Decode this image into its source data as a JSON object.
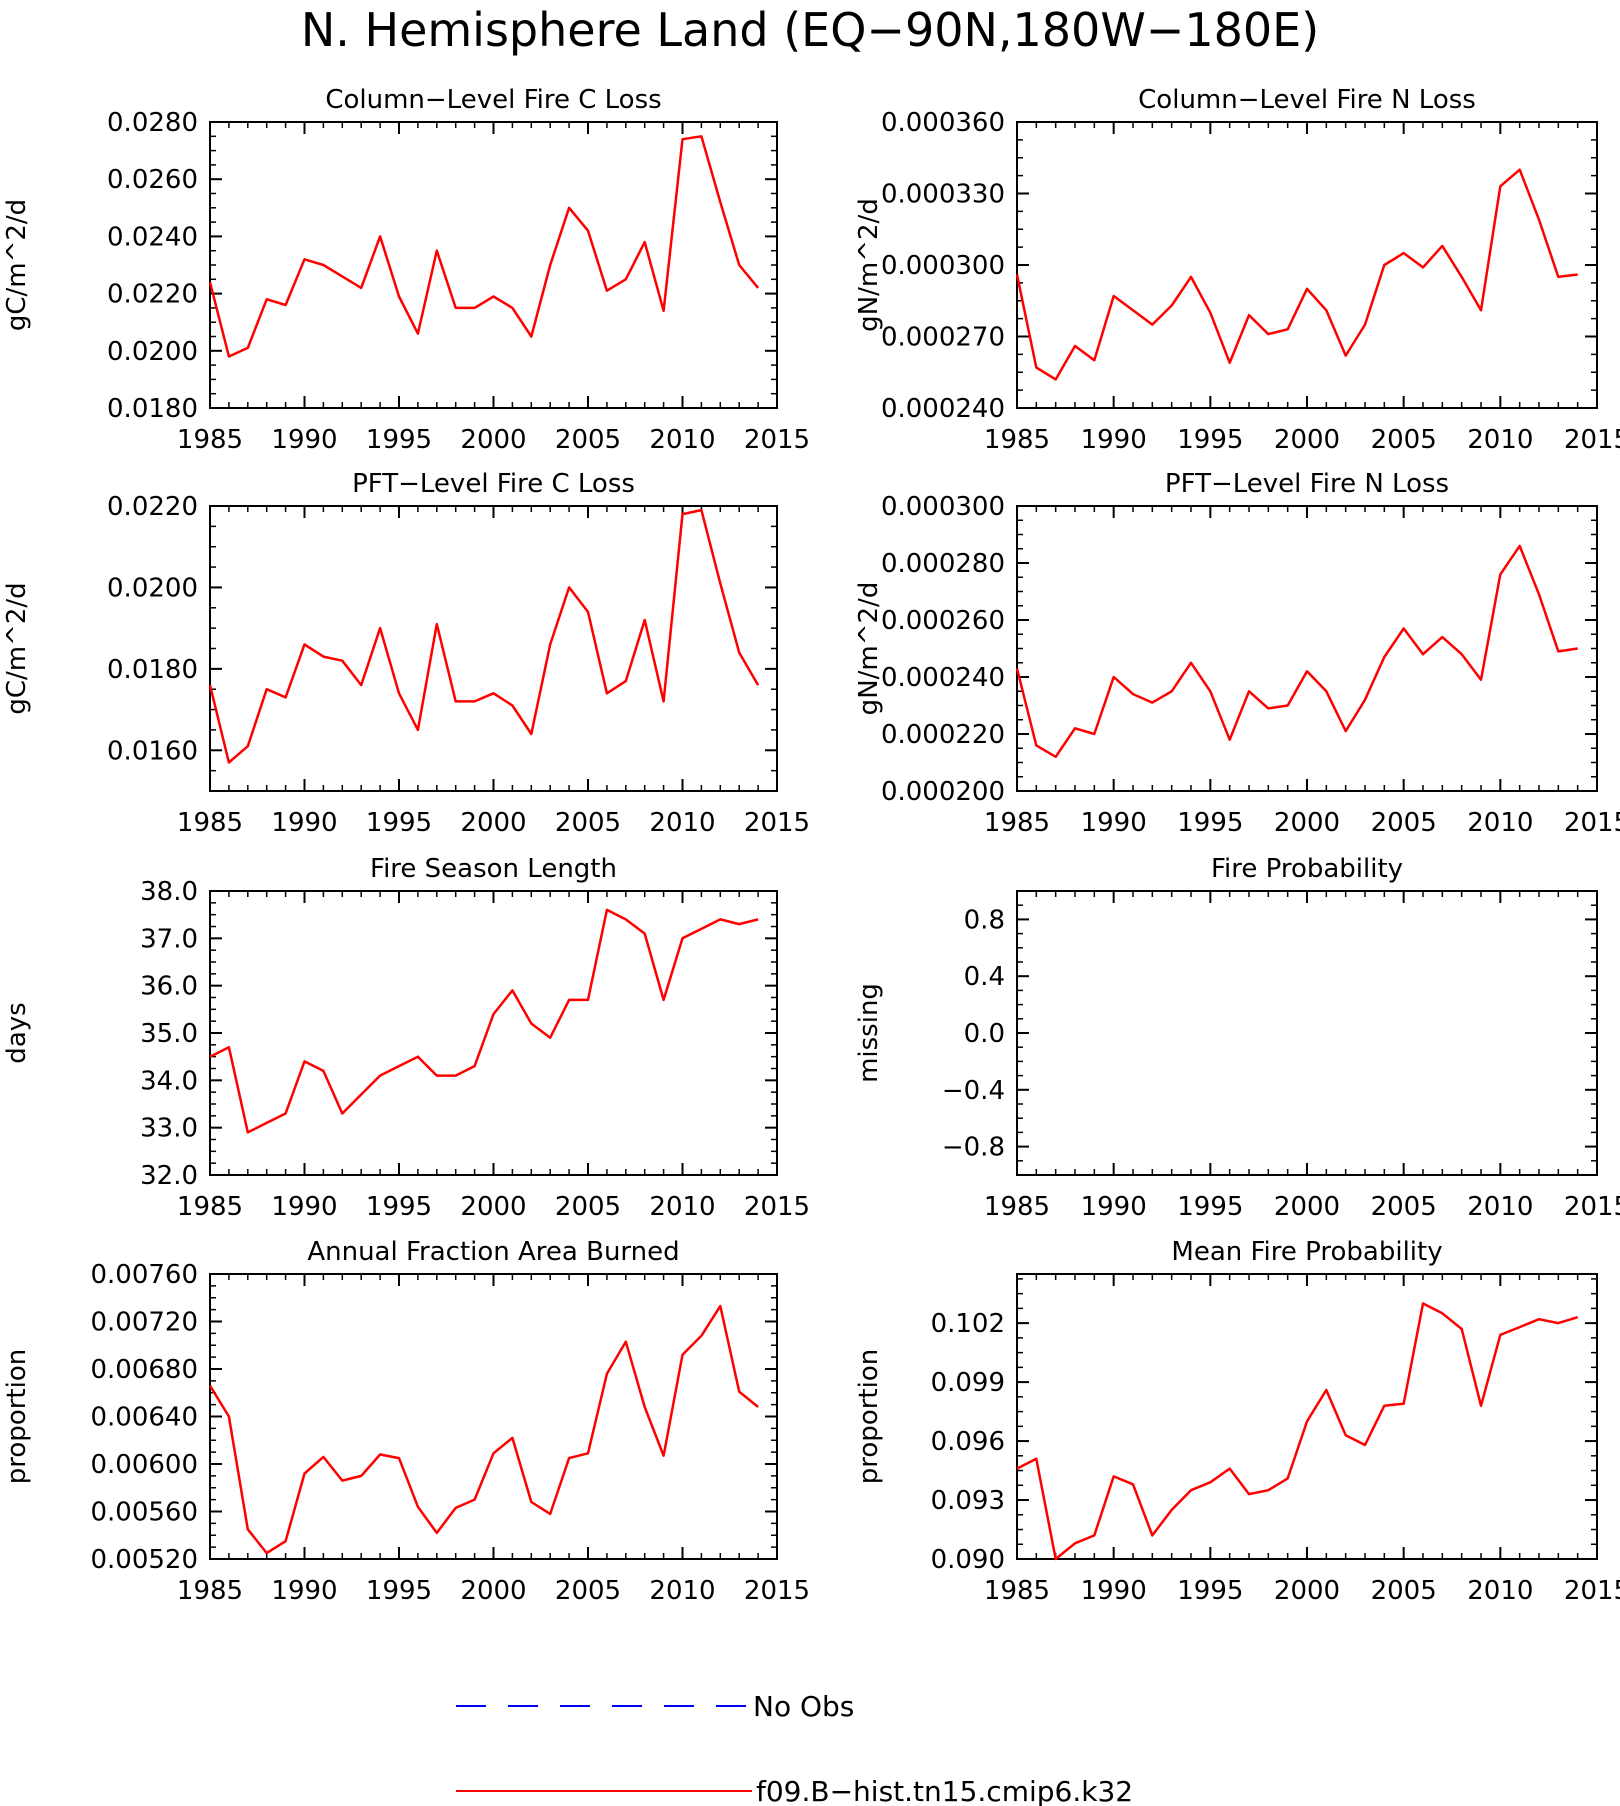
{
  "figure": {
    "title": "N. Hemisphere Land (EQ−90N,180W−180E)"
  },
  "legend": {
    "entries": [
      {
        "label": "No Obs",
        "color": "#0000ff",
        "style": "dashed"
      },
      {
        "label": "f09.B−hist.tn15.cmip6.k32",
        "color": "#ff0000",
        "style": "solid"
      }
    ]
  },
  "chart_data": [
    {
      "type": "line",
      "title": "Column−Level Fire C Loss",
      "ylabel": "gC/m^2/d",
      "xlim": [
        1985,
        2015
      ],
      "ylim": [
        0.018,
        0.028
      ],
      "yticks": [
        0.018,
        0.02,
        0.022,
        0.024,
        0.026,
        0.028
      ],
      "ytick_labels": [
        "0.0180",
        "0.0200",
        "0.0220",
        "0.0240",
        "0.0260",
        "0.0280"
      ],
      "xticks": [
        1985,
        1990,
        1995,
        2000,
        2005,
        2010,
        2015
      ],
      "series": [
        {
          "color": "#ff0000",
          "x": [
            1985,
            1986,
            1987,
            1988,
            1989,
            1990,
            1991,
            1992,
            1993,
            1994,
            1995,
            1996,
            1997,
            1998,
            1999,
            2000,
            2001,
            2002,
            2003,
            2004,
            2005,
            2006,
            2007,
            2008,
            2009,
            2010,
            2011,
            2012,
            2013,
            2014
          ],
          "values": [
            0.0224,
            0.0198,
            0.0201,
            0.0218,
            0.0216,
            0.0232,
            0.023,
            0.0226,
            0.0222,
            0.024,
            0.0219,
            0.0206,
            0.0235,
            0.0215,
            0.0215,
            0.0219,
            0.0215,
            0.0205,
            0.023,
            0.025,
            0.0242,
            0.0221,
            0.0225,
            0.0238,
            0.0214,
            0.0274,
            0.0275,
            0.0252,
            0.023,
            0.0222
          ]
        }
      ]
    },
    {
      "type": "line",
      "title": "Column−Level Fire N Loss",
      "ylabel": "gN/m^2/d",
      "xlim": [
        1985,
        2015
      ],
      "ylim": [
        0.00024,
        0.00036
      ],
      "yticks": [
        0.00024,
        0.00027,
        0.0003,
        0.00033,
        0.00036
      ],
      "ytick_labels": [
        "0.000240",
        "0.000270",
        "0.000300",
        "0.000330",
        "0.000360"
      ],
      "xticks": [
        1985,
        1990,
        1995,
        2000,
        2005,
        2010,
        2015
      ],
      "series": [
        {
          "color": "#ff0000",
          "x": [
            1985,
            1986,
            1987,
            1988,
            1989,
            1990,
            1991,
            1992,
            1993,
            1994,
            1995,
            1996,
            1997,
            1998,
            1999,
            2000,
            2001,
            2002,
            2003,
            2004,
            2005,
            2006,
            2007,
            2008,
            2009,
            2010,
            2011,
            2012,
            2013,
            2014
          ],
          "values": [
            0.000296,
            0.000257,
            0.000252,
            0.000266,
            0.00026,
            0.000287,
            0.000281,
            0.000275,
            0.000283,
            0.000295,
            0.00028,
            0.000259,
            0.000279,
            0.000271,
            0.000273,
            0.00029,
            0.000281,
            0.000262,
            0.000275,
            0.0003,
            0.000305,
            0.000299,
            0.000308,
            0.000295,
            0.000281,
            0.000333,
            0.00034,
            0.000319,
            0.000295,
            0.000296
          ]
        }
      ]
    },
    {
      "type": "line",
      "title": "PFT−Level Fire C Loss",
      "ylabel": "gC/m^2/d",
      "xlim": [
        1985,
        2015
      ],
      "ylim": [
        0.015,
        0.022
      ],
      "yticks": [
        0.016,
        0.018,
        0.02,
        0.022
      ],
      "ytick_labels": [
        "0.0160",
        "0.0180",
        "0.0200",
        "0.0220"
      ],
      "xticks": [
        1985,
        1990,
        1995,
        2000,
        2005,
        2010,
        2015
      ],
      "series": [
        {
          "color": "#ff0000",
          "x": [
            1985,
            1986,
            1987,
            1988,
            1989,
            1990,
            1991,
            1992,
            1993,
            1994,
            1995,
            1996,
            1997,
            1998,
            1999,
            2000,
            2001,
            2002,
            2003,
            2004,
            2005,
            2006,
            2007,
            2008,
            2009,
            2010,
            2011,
            2012,
            2013,
            2014
          ],
          "values": [
            0.0176,
            0.0157,
            0.0161,
            0.0175,
            0.0173,
            0.0186,
            0.0183,
            0.0182,
            0.0176,
            0.019,
            0.0174,
            0.0165,
            0.0191,
            0.0172,
            0.0172,
            0.0174,
            0.0171,
            0.0164,
            0.0186,
            0.02,
            0.0194,
            0.0174,
            0.0177,
            0.0192,
            0.0172,
            0.0218,
            0.0219,
            0.0201,
            0.0184,
            0.0176
          ]
        }
      ]
    },
    {
      "type": "line",
      "title": "PFT−Level Fire N Loss",
      "ylabel": "gN/m^2/d",
      "xlim": [
        1985,
        2015
      ],
      "ylim": [
        0.0002,
        0.0003
      ],
      "yticks": [
        0.0002,
        0.00022,
        0.00024,
        0.00026,
        0.00028,
        0.0003
      ],
      "ytick_labels": [
        "0.000200",
        "0.000220",
        "0.000240",
        "0.000260",
        "0.000280",
        "0.000300"
      ],
      "xticks": [
        1985,
        1990,
        1995,
        2000,
        2005,
        2010,
        2015
      ],
      "series": [
        {
          "color": "#ff0000",
          "x": [
            1985,
            1986,
            1987,
            1988,
            1989,
            1990,
            1991,
            1992,
            1993,
            1994,
            1995,
            1996,
            1997,
            1998,
            1999,
            2000,
            2001,
            2002,
            2003,
            2004,
            2005,
            2006,
            2007,
            2008,
            2009,
            2010,
            2011,
            2012,
            2013,
            2014
          ],
          "values": [
            0.000243,
            0.000216,
            0.000212,
            0.000222,
            0.00022,
            0.00024,
            0.000234,
            0.000231,
            0.000235,
            0.000245,
            0.000235,
            0.000218,
            0.000235,
            0.000229,
            0.00023,
            0.000242,
            0.000235,
            0.000221,
            0.000232,
            0.000247,
            0.000257,
            0.000248,
            0.000254,
            0.000248,
            0.000239,
            0.000276,
            0.000286,
            0.000269,
            0.000249,
            0.00025
          ]
        }
      ]
    },
    {
      "type": "line",
      "title": "Fire Season Length",
      "ylabel": "days",
      "xlim": [
        1985,
        2015
      ],
      "ylim": [
        32.0,
        38.0
      ],
      "yticks": [
        32.0,
        33.0,
        34.0,
        35.0,
        36.0,
        37.0,
        38.0
      ],
      "ytick_labels": [
        "32.0",
        "33.0",
        "34.0",
        "35.0",
        "36.0",
        "37.0",
        "38.0"
      ],
      "xticks": [
        1985,
        1990,
        1995,
        2000,
        2005,
        2010,
        2015
      ],
      "series": [
        {
          "color": "#ff0000",
          "x": [
            1985,
            1986,
            1987,
            1988,
            1989,
            1990,
            1991,
            1992,
            1993,
            1994,
            1995,
            1996,
            1997,
            1998,
            1999,
            2000,
            2001,
            2002,
            2003,
            2004,
            2005,
            2006,
            2007,
            2008,
            2009,
            2010,
            2011,
            2012,
            2013,
            2014
          ],
          "values": [
            34.5,
            34.7,
            32.9,
            33.1,
            33.3,
            34.4,
            34.2,
            33.3,
            33.7,
            34.1,
            34.3,
            34.5,
            34.1,
            34.1,
            34.3,
            35.4,
            35.9,
            35.2,
            34.9,
            35.7,
            35.7,
            37.6,
            37.4,
            37.1,
            35.7,
            37.0,
            37.2,
            37.4,
            37.3,
            37.4
          ]
        }
      ]
    },
    {
      "type": "line",
      "title": "Fire Probability",
      "ylabel": "missing",
      "xlim": [
        1985,
        2015
      ],
      "ylim": [
        -1.0,
        1.0
      ],
      "yticks": [
        -0.8,
        -0.4,
        0.0,
        0.4,
        0.8
      ],
      "ytick_labels": [
        "−0.8",
        "−0.4",
        "0.0",
        "0.4",
        "0.8"
      ],
      "xticks": [
        1985,
        1990,
        1995,
        2000,
        2005,
        2010,
        2015
      ],
      "series": []
    },
    {
      "type": "line",
      "title": "Annual Fraction Area Burned",
      "ylabel": "proportion",
      "xlim": [
        1985,
        2015
      ],
      "ylim": [
        0.0052,
        0.0076
      ],
      "yticks": [
        0.0052,
        0.0056,
        0.006,
        0.0064,
        0.0068,
        0.0072,
        0.0076
      ],
      "ytick_labels": [
        "0.00520",
        "0.00560",
        "0.00600",
        "0.00640",
        "0.00680",
        "0.00720",
        "0.00760"
      ],
      "xticks": [
        1985,
        1990,
        1995,
        2000,
        2005,
        2010,
        2015
      ],
      "series": [
        {
          "color": "#ff0000",
          "x": [
            1985,
            1986,
            1987,
            1988,
            1989,
            1990,
            1991,
            1992,
            1993,
            1994,
            1995,
            1996,
            1997,
            1998,
            1999,
            2000,
            2001,
            2002,
            2003,
            2004,
            2005,
            2006,
            2007,
            2008,
            2009,
            2010,
            2011,
            2012,
            2013,
            2014
          ],
          "values": [
            0.00666,
            0.0064,
            0.00545,
            0.00525,
            0.00535,
            0.00592,
            0.00606,
            0.00586,
            0.0059,
            0.00608,
            0.00605,
            0.00564,
            0.00542,
            0.00563,
            0.0057,
            0.00609,
            0.00622,
            0.00568,
            0.00558,
            0.00605,
            0.00609,
            0.00676,
            0.00703,
            0.00648,
            0.00607,
            0.00692,
            0.00708,
            0.00733,
            0.00661,
            0.00648
          ]
        }
      ]
    },
    {
      "type": "line",
      "title": "Mean Fire Probability",
      "ylabel": "proportion",
      "xlim": [
        1985,
        2015
      ],
      "ylim": [
        0.09,
        0.1045
      ],
      "yticks": [
        0.09,
        0.093,
        0.096,
        0.099,
        0.102
      ],
      "ytick_labels": [
        "0.090",
        "0.093",
        "0.096",
        "0.099",
        "0.102"
      ],
      "xticks": [
        1985,
        1990,
        1995,
        2000,
        2005,
        2010,
        2015
      ],
      "series": [
        {
          "color": "#ff0000",
          "x": [
            1985,
            1986,
            1987,
            1988,
            1989,
            1990,
            1991,
            1992,
            1993,
            1994,
            1995,
            1996,
            1997,
            1998,
            1999,
            2000,
            2001,
            2002,
            2003,
            2004,
            2005,
            2006,
            2007,
            2008,
            2009,
            2010,
            2011,
            2012,
            2013,
            2014
          ],
          "values": [
            0.0946,
            0.0951,
            0.09,
            0.0908,
            0.0912,
            0.0942,
            0.0938,
            0.0912,
            0.0925,
            0.0935,
            0.0939,
            0.0946,
            0.0933,
            0.0935,
            0.0941,
            0.097,
            0.0986,
            0.0963,
            0.0958,
            0.0978,
            0.0979,
            0.103,
            0.1025,
            0.1017,
            0.0978,
            0.1014,
            0.1018,
            0.1022,
            0.102,
            0.1023
          ]
        }
      ]
    }
  ]
}
